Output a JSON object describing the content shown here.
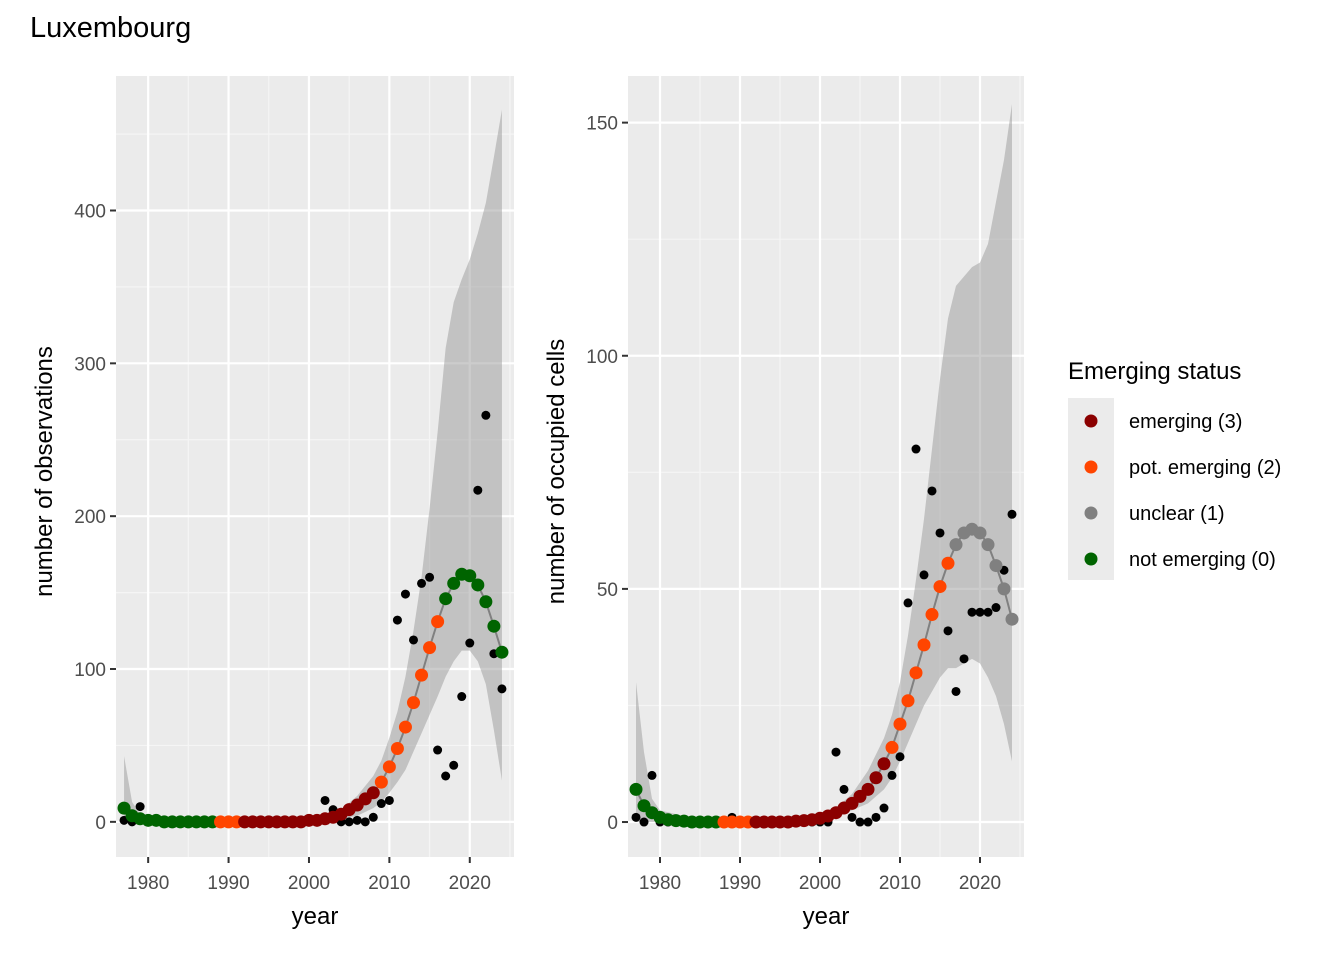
{
  "title": "Luxembourg",
  "legend": {
    "title": "Emerging status",
    "items": [
      {
        "label": "emerging (3)",
        "color": "#8b0000"
      },
      {
        "label": "pot. emerging (2)",
        "color": "#ff4500"
      },
      {
        "label": "unclear (1)",
        "color": "#808080"
      },
      {
        "label": "not emerging (0)",
        "color": "#006400"
      }
    ]
  },
  "chart_data": [
    {
      "type": "scatter",
      "xlabel": "year",
      "ylabel": "number of observations",
      "xlim": [
        1976,
        2025.5
      ],
      "ylim": [
        -23,
        488
      ],
      "xticks": [
        1980,
        1990,
        2000,
        2010,
        2020
      ],
      "yticks": [
        0,
        100,
        200,
        300,
        400
      ],
      "grid": true,
      "observed": [
        [
          1977,
          1
        ],
        [
          1978,
          0
        ],
        [
          1979,
          10
        ],
        [
          1980,
          0
        ],
        [
          1981,
          0
        ],
        [
          1982,
          0
        ],
        [
          1983,
          0
        ],
        [
          1984,
          0
        ],
        [
          1985,
          0
        ],
        [
          1986,
          0
        ],
        [
          1987,
          0
        ],
        [
          1988,
          0
        ],
        [
          1989,
          0
        ],
        [
          1990,
          0
        ],
        [
          1991,
          0
        ],
        [
          1992,
          0
        ],
        [
          1993,
          0
        ],
        [
          1994,
          0
        ],
        [
          1995,
          0
        ],
        [
          1996,
          0
        ],
        [
          1997,
          0
        ],
        [
          1998,
          0
        ],
        [
          1999,
          0
        ],
        [
          2000,
          0
        ],
        [
          2001,
          0
        ],
        [
          2002,
          14
        ],
        [
          2003,
          8
        ],
        [
          2004,
          0
        ],
        [
          2005,
          0
        ],
        [
          2006,
          1
        ],
        [
          2007,
          0
        ],
        [
          2008,
          3
        ],
        [
          2009,
          12
        ],
        [
          2010,
          14
        ],
        [
          2011,
          132
        ],
        [
          2012,
          149
        ],
        [
          2013,
          119
        ],
        [
          2014,
          156
        ],
        [
          2015,
          160
        ],
        [
          2016,
          47
        ],
        [
          2017,
          30
        ],
        [
          2018,
          37
        ],
        [
          2019,
          82
        ],
        [
          2020,
          117
        ],
        [
          2021,
          217
        ],
        [
          2022,
          266
        ],
        [
          2023,
          110
        ],
        [
          2024,
          87
        ]
      ],
      "trend": [
        [
          1977,
          9,
          "not emerging (0)"
        ],
        [
          1978,
          4,
          "not emerging (0)"
        ],
        [
          1979,
          2,
          "not emerging (0)"
        ],
        [
          1980,
          1,
          "not emerging (0)"
        ],
        [
          1981,
          1,
          "not emerging (0)"
        ],
        [
          1982,
          0,
          "not emerging (0)"
        ],
        [
          1983,
          0,
          "not emerging (0)"
        ],
        [
          1984,
          0,
          "not emerging (0)"
        ],
        [
          1985,
          0,
          "not emerging (0)"
        ],
        [
          1986,
          0,
          "not emerging (0)"
        ],
        [
          1987,
          0,
          "not emerging (0)"
        ],
        [
          1988,
          0,
          "not emerging (0)"
        ],
        [
          1989,
          0,
          "pot. emerging (2)"
        ],
        [
          1990,
          0,
          "pot. emerging (2)"
        ],
        [
          1991,
          0,
          "pot. emerging (2)"
        ],
        [
          1992,
          0,
          "emerging (3)"
        ],
        [
          1993,
          0,
          "emerging (3)"
        ],
        [
          1994,
          0,
          "emerging (3)"
        ],
        [
          1995,
          0,
          "emerging (3)"
        ],
        [
          1996,
          0,
          "emerging (3)"
        ],
        [
          1997,
          0,
          "emerging (3)"
        ],
        [
          1998,
          0,
          "emerging (3)"
        ],
        [
          1999,
          0,
          "emerging (3)"
        ],
        [
          2000,
          1,
          "emerging (3)"
        ],
        [
          2001,
          1,
          "emerging (3)"
        ],
        [
          2002,
          2,
          "emerging (3)"
        ],
        [
          2003,
          3,
          "emerging (3)"
        ],
        [
          2004,
          5,
          "emerging (3)"
        ],
        [
          2005,
          8,
          "emerging (3)"
        ],
        [
          2006,
          11,
          "emerging (3)"
        ],
        [
          2007,
          15,
          "emerging (3)"
        ],
        [
          2008,
          19,
          "emerging (3)"
        ],
        [
          2009,
          26,
          "pot. emerging (2)"
        ],
        [
          2010,
          36,
          "pot. emerging (2)"
        ],
        [
          2011,
          48,
          "pot. emerging (2)"
        ],
        [
          2012,
          62,
          "pot. emerging (2)"
        ],
        [
          2013,
          78,
          "pot. emerging (2)"
        ],
        [
          2014,
          96,
          "pot. emerging (2)"
        ],
        [
          2015,
          114,
          "pot. emerging (2)"
        ],
        [
          2016,
          131,
          "pot. emerging (2)"
        ],
        [
          2017,
          146,
          "not emerging (0)"
        ],
        [
          2018,
          156,
          "not emerging (0)"
        ],
        [
          2019,
          162,
          "not emerging (0)"
        ],
        [
          2020,
          161,
          "not emerging (0)"
        ],
        [
          2021,
          155,
          "not emerging (0)"
        ],
        [
          2022,
          144,
          "not emerging (0)"
        ],
        [
          2023,
          128,
          "not emerging (0)"
        ],
        [
          2024,
          111,
          "not emerging (0)"
        ]
      ],
      "ci_lower": [
        [
          1977,
          0
        ],
        [
          1978,
          0
        ],
        [
          1979,
          0
        ],
        [
          1980,
          0
        ],
        [
          1985,
          0
        ],
        [
          1990,
          0
        ],
        [
          1995,
          0
        ],
        [
          2000,
          0
        ],
        [
          2002,
          1
        ],
        [
          2004,
          2
        ],
        [
          2006,
          4
        ],
        [
          2008,
          9
        ],
        [
          2009,
          13
        ],
        [
          2010,
          19
        ],
        [
          2011,
          26
        ],
        [
          2012,
          34
        ],
        [
          2013,
          46
        ],
        [
          2014,
          58
        ],
        [
          2015,
          70
        ],
        [
          2016,
          82
        ],
        [
          2017,
          95
        ],
        [
          2018,
          105
        ],
        [
          2019,
          112
        ],
        [
          2020,
          112
        ],
        [
          2021,
          105
        ],
        [
          2022,
          90
        ],
        [
          2023,
          60
        ],
        [
          2024,
          27
        ]
      ],
      "ci_upper": [
        [
          1977,
          43
        ],
        [
          1978,
          13
        ],
        [
          1979,
          5
        ],
        [
          1980,
          2
        ],
        [
          1985,
          0
        ],
        [
          1990,
          0
        ],
        [
          1995,
          0
        ],
        [
          2000,
          2
        ],
        [
          2002,
          4
        ],
        [
          2004,
          8
        ],
        [
          2006,
          17
        ],
        [
          2008,
          30
        ],
        [
          2009,
          40
        ],
        [
          2010,
          55
        ],
        [
          2011,
          72
        ],
        [
          2012,
          95
        ],
        [
          2013,
          125
        ],
        [
          2014,
          160
        ],
        [
          2015,
          205
        ],
        [
          2016,
          255
        ],
        [
          2017,
          310
        ],
        [
          2018,
          340
        ],
        [
          2019,
          355
        ],
        [
          2020,
          368
        ],
        [
          2021,
          385
        ],
        [
          2022,
          405
        ],
        [
          2023,
          435
        ],
        [
          2024,
          466
        ]
      ]
    },
    {
      "type": "scatter",
      "xlabel": "year",
      "ylabel": "number of occupied cells",
      "xlim": [
        1976,
        2025.5
      ],
      "ylim": [
        -7.5,
        160
      ],
      "xticks": [
        1980,
        1990,
        2000,
        2010,
        2020
      ],
      "yticks": [
        0,
        50,
        100,
        150
      ],
      "grid": true,
      "observed": [
        [
          1977,
          1
        ],
        [
          1978,
          0
        ],
        [
          1979,
          10
        ],
        [
          1980,
          0
        ],
        [
          1981,
          0
        ],
        [
          1982,
          0
        ],
        [
          1983,
          0
        ],
        [
          1984,
          0
        ],
        [
          1985,
          0
        ],
        [
          1986,
          0
        ],
        [
          1987,
          0
        ],
        [
          1988,
          0
        ],
        [
          1989,
          1
        ],
        [
          1990,
          0
        ],
        [
          1991,
          0
        ],
        [
          1992,
          0
        ],
        [
          1993,
          0
        ],
        [
          1994,
          0
        ],
        [
          1995,
          0
        ],
        [
          1996,
          0
        ],
        [
          1997,
          0
        ],
        [
          1998,
          0
        ],
        [
          1999,
          0
        ],
        [
          2000,
          0
        ],
        [
          2001,
          0
        ],
        [
          2002,
          15
        ],
        [
          2003,
          7
        ],
        [
          2004,
          1
        ],
        [
          2005,
          0
        ],
        [
          2006,
          0
        ],
        [
          2007,
          1
        ],
        [
          2008,
          3
        ],
        [
          2009,
          10
        ],
        [
          2010,
          14
        ],
        [
          2011,
          47
        ],
        [
          2012,
          80
        ],
        [
          2013,
          53
        ],
        [
          2014,
          71
        ],
        [
          2015,
          62
        ],
        [
          2016,
          41
        ],
        [
          2017,
          28
        ],
        [
          2018,
          35
        ],
        [
          2019,
          45
        ],
        [
          2020,
          45
        ],
        [
          2021,
          45
        ],
        [
          2022,
          46
        ],
        [
          2023,
          54
        ],
        [
          2024,
          66
        ]
      ],
      "trend": [
        [
          1977,
          7,
          "not emerging (0)"
        ],
        [
          1978,
          3.5,
          "not emerging (0)"
        ],
        [
          1979,
          2,
          "not emerging (0)"
        ],
        [
          1980,
          1,
          "not emerging (0)"
        ],
        [
          1981,
          0.5,
          "not emerging (0)"
        ],
        [
          1982,
          0.3,
          "not emerging (0)"
        ],
        [
          1983,
          0.2,
          "not emerging (0)"
        ],
        [
          1984,
          0,
          "not emerging (0)"
        ],
        [
          1985,
          0,
          "not emerging (0)"
        ],
        [
          1986,
          0,
          "not emerging (0)"
        ],
        [
          1987,
          0,
          "not emerging (0)"
        ],
        [
          1988,
          0,
          "pot. emerging (2)"
        ],
        [
          1989,
          0,
          "pot. emerging (2)"
        ],
        [
          1990,
          0,
          "pot. emerging (2)"
        ],
        [
          1991,
          0,
          "pot. emerging (2)"
        ],
        [
          1992,
          0,
          "emerging (3)"
        ],
        [
          1993,
          0,
          "emerging (3)"
        ],
        [
          1994,
          0,
          "emerging (3)"
        ],
        [
          1995,
          0,
          "emerging (3)"
        ],
        [
          1996,
          0,
          "emerging (3)"
        ],
        [
          1997,
          0.2,
          "emerging (3)"
        ],
        [
          1998,
          0.3,
          "emerging (3)"
        ],
        [
          1999,
          0.5,
          "emerging (3)"
        ],
        [
          2000,
          0.8,
          "emerging (3)"
        ],
        [
          2001,
          1.3,
          "emerging (3)"
        ],
        [
          2002,
          2,
          "emerging (3)"
        ],
        [
          2003,
          3,
          "emerging (3)"
        ],
        [
          2004,
          4,
          "emerging (3)"
        ],
        [
          2005,
          5.5,
          "emerging (3)"
        ],
        [
          2006,
          7,
          "emerging (3)"
        ],
        [
          2007,
          9.5,
          "emerging (3)"
        ],
        [
          2008,
          12.5,
          "emerging (3)"
        ],
        [
          2009,
          16,
          "pot. emerging (2)"
        ],
        [
          2010,
          21,
          "pot. emerging (2)"
        ],
        [
          2011,
          26,
          "pot. emerging (2)"
        ],
        [
          2012,
          32,
          "pot. emerging (2)"
        ],
        [
          2013,
          38,
          "pot. emerging (2)"
        ],
        [
          2014,
          44.5,
          "pot. emerging (2)"
        ],
        [
          2015,
          50.5,
          "pot. emerging (2)"
        ],
        [
          2016,
          55.5,
          "pot. emerging (2)"
        ],
        [
          2017,
          59.5,
          "unclear (1)"
        ],
        [
          2018,
          62,
          "unclear (1)"
        ],
        [
          2019,
          62.8,
          "unclear (1)"
        ],
        [
          2020,
          62,
          "unclear (1)"
        ],
        [
          2021,
          59.5,
          "unclear (1)"
        ],
        [
          2022,
          55,
          "unclear (1)"
        ],
        [
          2023,
          50,
          "unclear (1)"
        ],
        [
          2024,
          43.5,
          "unclear (1)"
        ]
      ],
      "ci_lower": [
        [
          1977,
          0
        ],
        [
          1978,
          0
        ],
        [
          1979,
          0
        ],
        [
          1980,
          0
        ],
        [
          1985,
          0
        ],
        [
          1990,
          0
        ],
        [
          1995,
          0
        ],
        [
          2000,
          0
        ],
        [
          2002,
          1
        ],
        [
          2004,
          2.5
        ],
        [
          2006,
          4
        ],
        [
          2008,
          7
        ],
        [
          2009,
          9.5
        ],
        [
          2010,
          13
        ],
        [
          2011,
          17
        ],
        [
          2012,
          21
        ],
        [
          2013,
          25
        ],
        [
          2014,
          28
        ],
        [
          2015,
          31
        ],
        [
          2016,
          33
        ],
        [
          2017,
          33
        ],
        [
          2018,
          34
        ],
        [
          2019,
          35
        ],
        [
          2020,
          34
        ],
        [
          2021,
          31
        ],
        [
          2022,
          27
        ],
        [
          2023,
          21
        ],
        [
          2024,
          13
        ]
      ],
      "ci_upper": [
        [
          1977,
          30
        ],
        [
          1978,
          15
        ],
        [
          1979,
          5
        ],
        [
          1980,
          2.5
        ],
        [
          1985,
          0.5
        ],
        [
          1990,
          0
        ],
        [
          1995,
          0.5
        ],
        [
          2000,
          2
        ],
        [
          2002,
          3
        ],
        [
          2004,
          6
        ],
        [
          2006,
          11
        ],
        [
          2008,
          18
        ],
        [
          2009,
          23
        ],
        [
          2010,
          30
        ],
        [
          2011,
          40
        ],
        [
          2012,
          52
        ],
        [
          2013,
          65
        ],
        [
          2014,
          80
        ],
        [
          2015,
          95
        ],
        [
          2016,
          108
        ],
        [
          2017,
          115
        ],
        [
          2018,
          117
        ],
        [
          2019,
          119
        ],
        [
          2020,
          120
        ],
        [
          2021,
          124
        ],
        [
          2022,
          133
        ],
        [
          2023,
          142
        ],
        [
          2024,
          154
        ]
      ]
    }
  ]
}
